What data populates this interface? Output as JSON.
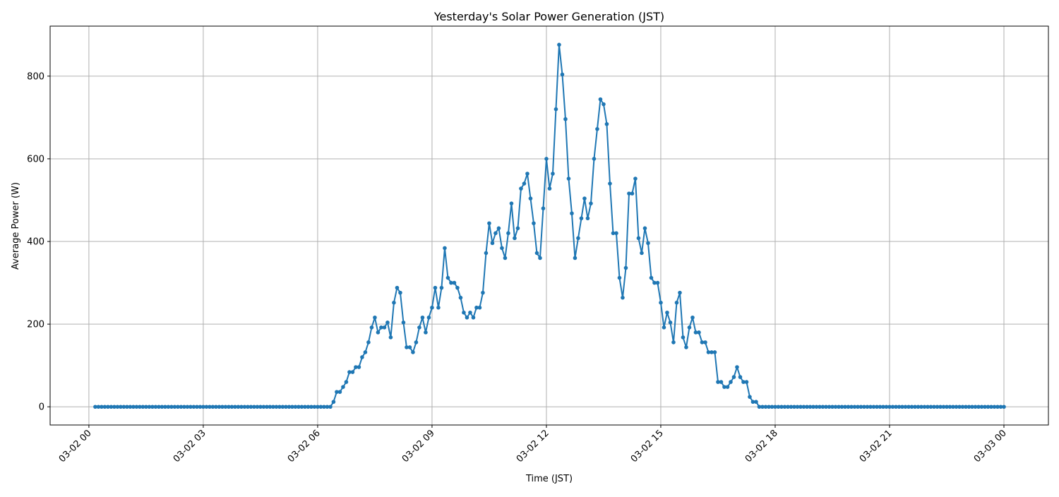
{
  "chart_data": {
    "type": "line",
    "title": "Yesterday's Solar Power Generation (JST)",
    "xlabel": "Time (JST)",
    "ylabel": "Average Power (W)",
    "xlim": [
      "03-01 22:59",
      "03-03 01:10"
    ],
    "ylim": [
      -44,
      921
    ],
    "x_ticks": [
      "03-02 00",
      "03-02 03",
      "03-02 06",
      "03-02 09",
      "03-02 12",
      "03-02 15",
      "03-02 18",
      "03-02 21",
      "03-03 00"
    ],
    "y_ticks": [
      0,
      200,
      400,
      600,
      800
    ],
    "grid": true,
    "markers": true,
    "color": "#1f77b4",
    "x": [
      "03-02 00:10",
      "03-02 00:15",
      "03-02 00:20",
      "03-02 00:25",
      "03-02 00:30",
      "03-02 00:35",
      "03-02 00:40",
      "03-02 00:45",
      "03-02 00:50",
      "03-02 00:55",
      "03-02 01:00",
      "03-02 01:05",
      "03-02 01:10",
      "03-02 01:15",
      "03-02 01:20",
      "03-02 01:25",
      "03-02 01:30",
      "03-02 01:35",
      "03-02 01:40",
      "03-02 01:45",
      "03-02 01:50",
      "03-02 01:55",
      "03-02 02:00",
      "03-02 02:05",
      "03-02 02:10",
      "03-02 02:15",
      "03-02 02:20",
      "03-02 02:25",
      "03-02 02:30",
      "03-02 02:35",
      "03-02 02:40",
      "03-02 02:45",
      "03-02 02:50",
      "03-02 02:55",
      "03-02 03:00",
      "03-02 03:05",
      "03-02 03:10",
      "03-02 03:15",
      "03-02 03:20",
      "03-02 03:25",
      "03-02 03:30",
      "03-02 03:35",
      "03-02 03:40",
      "03-02 03:45",
      "03-02 03:50",
      "03-02 03:55",
      "03-02 04:00",
      "03-02 04:05",
      "03-02 04:10",
      "03-02 04:15",
      "03-02 04:20",
      "03-02 04:25",
      "03-02 04:30",
      "03-02 04:35",
      "03-02 04:40",
      "03-02 04:45",
      "03-02 04:50",
      "03-02 04:55",
      "03-02 05:00",
      "03-02 05:05",
      "03-02 05:10",
      "03-02 05:15",
      "03-02 05:20",
      "03-02 05:25",
      "03-02 05:30",
      "03-02 05:35",
      "03-02 05:40",
      "03-02 05:45",
      "03-02 05:50",
      "03-02 05:55",
      "03-02 06:00",
      "03-02 06:05",
      "03-02 06:10",
      "03-02 06:15",
      "03-02 06:20",
      "03-02 06:25",
      "03-02 06:30",
      "03-02 06:35",
      "03-02 06:40",
      "03-02 06:45",
      "03-02 06:50",
      "03-02 06:55",
      "03-02 07:00",
      "03-02 07:05",
      "03-02 07:10",
      "03-02 07:15",
      "03-02 07:20",
      "03-02 07:25",
      "03-02 07:30",
      "03-02 07:35",
      "03-02 07:40",
      "03-02 07:45",
      "03-02 07:50",
      "03-02 07:55",
      "03-02 08:00",
      "03-02 08:05",
      "03-02 08:10",
      "03-02 08:15",
      "03-02 08:20",
      "03-02 08:25",
      "03-02 08:30",
      "03-02 08:35",
      "03-02 08:40",
      "03-02 08:45",
      "03-02 08:50",
      "03-02 08:55",
      "03-02 09:00",
      "03-02 09:05",
      "03-02 09:10",
      "03-02 09:15",
      "03-02 09:20",
      "03-02 09:25",
      "03-02 09:30",
      "03-02 09:35",
      "03-02 09:40",
      "03-02 09:45",
      "03-02 09:50",
      "03-02 09:55",
      "03-02 10:00",
      "03-02 10:05",
      "03-02 10:10",
      "03-02 10:15",
      "03-02 10:20",
      "03-02 10:25",
      "03-02 10:30",
      "03-02 10:35",
      "03-02 10:40",
      "03-02 10:45",
      "03-02 10:50",
      "03-02 10:55",
      "03-02 11:00",
      "03-02 11:05",
      "03-02 11:10",
      "03-02 11:15",
      "03-02 11:20",
      "03-02 11:25",
      "03-02 11:30",
      "03-02 11:35",
      "03-02 11:40",
      "03-02 11:45",
      "03-02 11:50",
      "03-02 11:55",
      "03-02 12:00",
      "03-02 12:05",
      "03-02 12:10",
      "03-02 12:15",
      "03-02 12:20",
      "03-02 12:25",
      "03-02 12:30",
      "03-02 12:35",
      "03-02 12:40",
      "03-02 12:45",
      "03-02 12:50",
      "03-02 12:55",
      "03-02 13:00",
      "03-02 13:05",
      "03-02 13:10",
      "03-02 13:15",
      "03-02 13:20",
      "03-02 13:25",
      "03-02 13:30",
      "03-02 13:35",
      "03-02 13:40",
      "03-02 13:45",
      "03-02 13:50",
      "03-02 13:55",
      "03-02 14:00",
      "03-02 14:05",
      "03-02 14:10",
      "03-02 14:15",
      "03-02 14:20",
      "03-02 14:25",
      "03-02 14:30",
      "03-02 14:35",
      "03-02 14:40",
      "03-02 14:45",
      "03-02 14:50",
      "03-02 14:55",
      "03-02 15:00",
      "03-02 15:05",
      "03-02 15:10",
      "03-02 15:15",
      "03-02 15:20",
      "03-02 15:25",
      "03-02 15:30",
      "03-02 15:35",
      "03-02 15:40",
      "03-02 15:45",
      "03-02 15:50",
      "03-02 15:55",
      "03-02 16:00",
      "03-02 16:05",
      "03-02 16:10",
      "03-02 16:15",
      "03-02 16:20",
      "03-02 16:25",
      "03-02 16:30",
      "03-02 16:35",
      "03-02 16:40",
      "03-02 16:45",
      "03-02 16:50",
      "03-02 16:55",
      "03-02 17:00",
      "03-02 17:05",
      "03-02 17:10",
      "03-02 17:15",
      "03-02 17:20",
      "03-02 17:25",
      "03-02 17:30",
      "03-02 17:35",
      "03-02 17:40",
      "03-02 17:45",
      "03-02 17:50",
      "03-02 17:55",
      "03-02 18:00",
      "03-02 18:05",
      "03-02 18:10",
      "03-02 18:15",
      "03-02 18:20",
      "03-02 18:25",
      "03-02 18:30",
      "03-02 18:35",
      "03-02 18:40",
      "03-02 18:45",
      "03-02 18:50",
      "03-02 18:55",
      "03-02 19:00",
      "03-02 19:05",
      "03-02 19:10",
      "03-02 19:15",
      "03-02 19:20",
      "03-02 19:25",
      "03-02 19:30",
      "03-02 19:35",
      "03-02 19:40",
      "03-02 19:45",
      "03-02 19:50",
      "03-02 19:55",
      "03-02 20:00",
      "03-02 20:05",
      "03-02 20:10",
      "03-02 20:15",
      "03-02 20:20",
      "03-02 20:25",
      "03-02 20:30",
      "03-02 20:35",
      "03-02 20:40",
      "03-02 20:45",
      "03-02 20:50",
      "03-02 20:55",
      "03-02 21:00",
      "03-02 21:05",
      "03-02 21:10",
      "03-02 21:15",
      "03-02 21:20",
      "03-02 21:25",
      "03-02 21:30",
      "03-02 21:35",
      "03-02 21:40",
      "03-02 21:45",
      "03-02 21:50",
      "03-02 21:55",
      "03-02 22:00",
      "03-02 22:05",
      "03-02 22:10",
      "03-02 22:15",
      "03-02 22:20",
      "03-02 22:25",
      "03-02 22:30",
      "03-02 22:35",
      "03-02 22:40",
      "03-02 22:45",
      "03-02 22:50",
      "03-02 22:55",
      "03-02 23:00",
      "03-02 23:05",
      "03-02 23:10",
      "03-02 23:15",
      "03-02 23:20",
      "03-02 23:25",
      "03-02 23:30",
      "03-02 23:35",
      "03-02 23:40",
      "03-02 23:45",
      "03-02 23:50",
      "03-02 23:55",
      "03-03 00:00"
    ],
    "values": [
      0,
      0,
      0,
      0,
      0,
      0,
      0,
      0,
      0,
      0,
      0,
      0,
      0,
      0,
      0,
      0,
      0,
      0,
      0,
      0,
      0,
      0,
      0,
      0,
      0,
      0,
      0,
      0,
      0,
      0,
      0,
      0,
      0,
      0,
      0,
      0,
      0,
      0,
      0,
      0,
      0,
      0,
      0,
      0,
      0,
      0,
      0,
      0,
      0,
      0,
      0,
      0,
      0,
      0,
      0,
      0,
      0,
      0,
      0,
      0,
      0,
      0,
      0,
      0,
      0,
      0,
      0,
      0,
      0,
      0,
      0,
      0,
      0,
      0,
      0,
      12,
      36,
      36,
      48,
      60,
      84,
      84,
      96,
      96,
      120,
      132,
      156,
      192,
      216,
      180,
      192,
      192,
      204,
      168,
      252,
      288,
      276,
      204,
      144,
      144,
      132,
      156,
      192,
      216,
      180,
      216,
      240,
      288,
      240,
      288,
      384,
      312,
      300,
      300,
      288,
      264,
      228,
      216,
      228,
      216,
      240,
      240,
      276,
      372,
      444,
      396,
      420,
      432,
      384,
      360,
      420,
      492,
      408,
      432,
      528,
      540,
      564,
      504,
      444,
      372,
      360,
      480,
      600,
      528,
      564,
      720,
      876,
      804,
      696,
      552,
      468,
      360,
      408,
      456,
      504,
      456,
      492,
      600,
      672,
      744,
      732,
      684,
      540,
      420,
      420,
      312,
      264,
      336,
      516,
      516,
      552,
      408,
      372,
      432,
      396,
      312,
      300,
      300,
      252,
      192,
      228,
      204,
      156,
      252,
      276,
      168,
      144,
      192,
      216,
      180,
      180,
      156,
      156,
      132,
      132,
      132,
      60,
      60,
      48,
      48,
      60,
      72,
      96,
      72,
      60,
      60,
      24,
      12,
      12,
      0,
      0,
      0,
      0,
      0,
      0,
      0,
      0,
      0,
      0,
      0,
      0,
      0,
      0,
      0,
      0,
      0,
      0,
      0,
      0,
      0,
      0,
      0,
      0,
      0,
      0,
      0,
      0,
      0,
      0,
      0,
      0,
      0,
      0,
      0,
      0,
      0,
      0,
      0,
      0,
      0,
      0,
      0,
      0,
      0,
      0,
      0,
      0,
      0,
      0,
      0,
      0,
      0,
      0,
      0,
      0,
      0,
      0,
      0,
      0,
      0,
      0,
      0,
      0,
      0,
      0,
      0,
      0,
      0,
      0,
      0,
      0,
      0,
      0,
      0,
      0,
      0,
      0
    ]
  }
}
